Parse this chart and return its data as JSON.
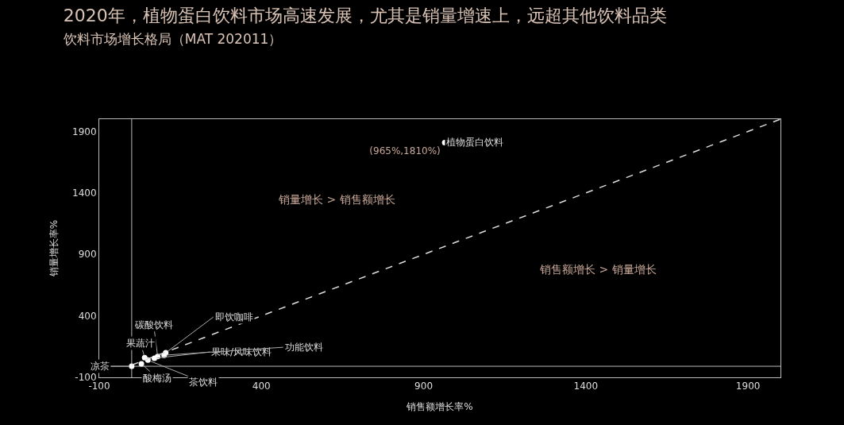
{
  "chart_data": {
    "type": "scatter",
    "title": "2020年，植物蛋白饮料市场高速发展，尤其是销量增速上，远超其他饮料品类",
    "subtitle": "饮料市场增长格局（MAT 202011）",
    "xlabel": "销售额增长率%",
    "ylabel": "销量增长率%",
    "xlim": [
      -100,
      2000
    ],
    "ylim": [
      -100,
      2000
    ],
    "xticks": [
      -100,
      400,
      900,
      1400,
      1900
    ],
    "yticks": [
      -100,
      400,
      900,
      1400,
      1900
    ],
    "grid": false,
    "legend": false,
    "marker": "circle",
    "ref_lines": [
      {
        "axis": "x",
        "value": 0,
        "color": "#bbbbbb"
      },
      {
        "axis": "y",
        "value": -10,
        "color": "#bbbbbb"
      }
    ],
    "annotations": [
      "销量增长 > 销售额增长",
      "销售额增长 > 销量增长"
    ],
    "series": [
      {
        "name": "植物蛋白饮料",
        "color": "#ffffff",
        "x": [
          965
        ],
        "values": [
          1810
        ],
        "value_labels": [
          "(965%,1810%)"
        ]
      },
      {
        "name": "即饮咖啡",
        "color": "#ffffff",
        "x": [
          105
        ],
        "values": [
          100
        ]
      },
      {
        "name": "碳酸饮料",
        "color": "#ffffff",
        "x": [
          80
        ],
        "values": [
          70
        ]
      },
      {
        "name": "果蔬汁",
        "color": "#ffffff",
        "x": [
          40
        ],
        "values": [
          60
        ]
      },
      {
        "name": "果味/风味饮料",
        "color": "#ffffff",
        "x": [
          70
        ],
        "values": [
          55
        ]
      },
      {
        "name": "功能饮料",
        "color": "#ffffff",
        "x": [
          100
        ],
        "values": [
          80
        ]
      },
      {
        "name": "茶饮料",
        "color": "#ffffff",
        "x": [
          50
        ],
        "values": [
          40
        ]
      },
      {
        "name": "酸梅汤",
        "color": "#ffffff",
        "x": [
          30
        ],
        "values": [
          10
        ]
      },
      {
        "name": "凉茶",
        "color": "#ffffff",
        "x": [
          0
        ],
        "values": [
          -10
        ]
      },
      {
        "type": "line",
        "color": "#dddddd",
        "line_style": "dashed",
        "marker": "none",
        "x": [
          0,
          2000
        ],
        "values": [
          0,
          2000
        ]
      }
    ]
  }
}
